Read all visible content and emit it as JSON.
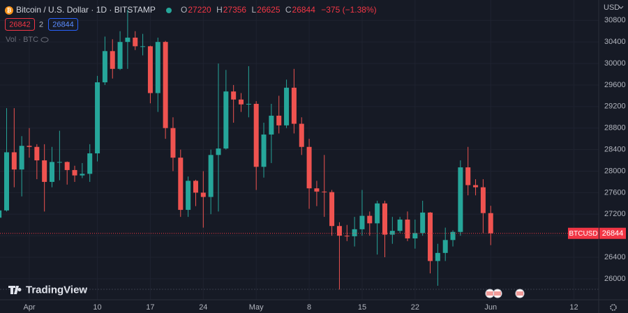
{
  "chart_data": {
    "type": "candlestick",
    "title": "Bitcoin / U.S. Dollar · 1D · BITSTAMP",
    "legend_values": [
      {
        "label": "O",
        "value": "27220"
      },
      {
        "label": "H",
        "value": "27356"
      },
      {
        "label": "L",
        "value": "26625"
      },
      {
        "label": "C",
        "value": "26844"
      }
    ],
    "change": "−375 (−1.38%)",
    "bid": "26842",
    "spread": "2",
    "ask": "26844",
    "volume_label": "Vol · BTC",
    "currency": "USD",
    "watermark": "TradingView",
    "up_color": "#26a69a",
    "down_color": "#ef5350",
    "categories": [
      null,
      null,
      null,
      null,
      "Apr",
      null,
      null,
      null,
      null,
      null,
      null,
      null,
      null,
      "10",
      null,
      null,
      null,
      null,
      null,
      null,
      "17",
      null,
      null,
      null,
      null,
      null,
      null,
      "24",
      null,
      null,
      null,
      null,
      null,
      null,
      "May",
      null,
      null,
      null,
      null,
      null,
      null,
      "8",
      null,
      null,
      null,
      null,
      null,
      null,
      "15",
      null,
      null,
      null,
      null,
      null,
      null,
      "22",
      null,
      null,
      null,
      null,
      null,
      null,
      null,
      null,
      null,
      "Jun",
      null,
      null,
      null,
      null,
      null,
      null,
      null,
      null,
      null,
      null,
      "12",
      null,
      null
    ],
    "open": [
      27135,
      27270,
      28350,
      28030,
      28470,
      28450,
      28200,
      27800,
      28170,
      28170,
      28020,
      27920,
      27950,
      28330,
      29650,
      30230,
      29900,
      30400,
      30480,
      30320,
      30320,
      29450,
      30400,
      28800,
      28250,
      27280,
      27820,
      27600,
      27520,
      28300,
      28420,
      29480,
      29330,
      29240,
      29250,
      28080,
      28680,
      29030,
      28850,
      29550,
      28880,
      28450,
      27680,
      27620,
      27610,
      26980,
      26800,
      26790,
      26920,
      27170,
      27030,
      27400,
      26820,
      26890,
      27100,
      26750,
      26850,
      27230,
      26330,
      26480,
      26720,
      26870,
      28070,
      27740,
      27700,
      27220,
      null,
      null,
      null,
      null,
      null,
      null,
      null,
      null,
      null,
      null,
      null,
      null,
      null
    ],
    "high": [
      27500,
      29170,
      29170,
      28650,
      28800,
      28500,
      28500,
      28450,
      28750,
      28180,
      28100,
      28150,
      28500,
      29770,
      30500,
      30450,
      30600,
      31000,
      30600,
      30550,
      30330,
      30480,
      30420,
      29000,
      28400,
      27900,
      27840,
      28000,
      28400,
      30000,
      29880,
      29600,
      29450,
      29950,
      29300,
      28900,
      29250,
      29400,
      29700,
      29900,
      29000,
      28600,
      27820,
      28300,
      27650,
      27050,
      27000,
      27150,
      27650,
      27250,
      27450,
      27450,
      27150,
      27150,
      27250,
      27100,
      27450,
      27240,
      26650,
      26950,
      26900,
      28200,
      28450,
      27850,
      27850,
      27356,
      null,
      null,
      null,
      null,
      null,
      null,
      null,
      null,
      null,
      null,
      null,
      null,
      null
    ],
    "low": [
      26650,
      27250,
      27700,
      27530,
      28250,
      27850,
      27250,
      27700,
      27830,
      27750,
      27800,
      27870,
      27800,
      28180,
      29600,
      29720,
      29880,
      29900,
      30250,
      30150,
      29260,
      29100,
      28600,
      28000,
      27150,
      27150,
      27350,
      26950,
      27200,
      27250,
      28400,
      28900,
      29100,
      29000,
      27650,
      27880,
      28150,
      28700,
      28800,
      28700,
      28300,
      27300,
      27350,
      27150,
      26800,
      25800,
      26700,
      26600,
      26800,
      26800,
      26450,
      26400,
      26650,
      26850,
      26700,
      26560,
      26800,
      26100,
      25870,
      26330,
      26600,
      26800,
      27550,
      27550,
      26850,
      26625,
      null,
      null,
      null,
      null,
      null,
      null,
      null,
      null,
      null,
      null,
      null,
      null,
      null
    ],
    "close": [
      27270,
      28350,
      28030,
      28470,
      28450,
      28200,
      27800,
      28170,
      28170,
      28020,
      27920,
      27950,
      28330,
      29650,
      30230,
      29900,
      30400,
      30480,
      30320,
      30320,
      29450,
      30400,
      28800,
      28250,
      27280,
      27820,
      27600,
      27520,
      28300,
      28420,
      29480,
      29330,
      29240,
      29250,
      28080,
      28680,
      29030,
      28850,
      29550,
      28880,
      28450,
      27680,
      27620,
      27610,
      26980,
      26800,
      26790,
      26920,
      27170,
      27030,
      27400,
      26820,
      26890,
      27100,
      26750,
      26850,
      27230,
      26330,
      26480,
      26720,
      26870,
      28070,
      27740,
      27700,
      27220,
      26844,
      null,
      null,
      null,
      null,
      null,
      null,
      null,
      null,
      null,
      null,
      null,
      null,
      null
    ],
    "ylim": [
      25610,
      31050
    ],
    "yticks": [
      26000,
      26400,
      26800,
      27200,
      27600,
      28000,
      28400,
      28800,
      29200,
      29600,
      30000,
      30400,
      30800
    ],
    "grid": true,
    "price_line": {
      "name": "BTCUSD",
      "value": 26844,
      "color": "#f23645"
    }
  }
}
